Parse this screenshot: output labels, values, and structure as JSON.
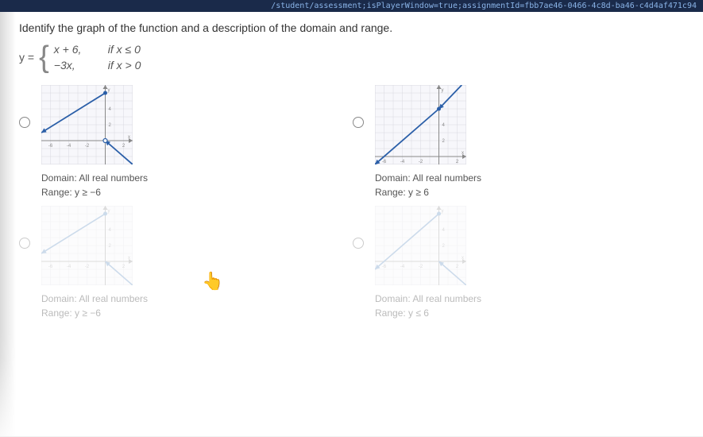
{
  "url_fragment": "/student/assessment;isPlayerWindow=true;assignmentId=fbb7ae46-0466-4c8d-ba46-c4d4af471c94",
  "question_text": "Identify the graph of the function and a description of the domain and range.",
  "equation": {
    "lhs": "y =",
    "pieces": [
      {
        "expr": "x + 6,",
        "cond": "if x ≤ 0"
      },
      {
        "expr": "−3x,",
        "cond": "if x > 0"
      }
    ]
  },
  "options": [
    {
      "id": "a",
      "domain_label": "Domain: All real numbers",
      "range_label": "Range: y ≥ −6",
      "faded": false,
      "chart": {
        "type": "piecewise-line",
        "xlim": [
          -7,
          3
        ],
        "ylim": [
          -3,
          7
        ],
        "grid_color": "#d8d8e0",
        "axis_color": "#888",
        "bg": "#f7f7fb",
        "xticks": [
          -6,
          -4,
          -2,
          2
        ],
        "yticks": [
          2,
          4
        ],
        "segments": [
          {
            "points": [
              [
                -7,
                1
              ],
              [
                0,
                6
              ]
            ],
            "color": "#2b5fa8",
            "width": 1.8,
            "end_dot": [
              0,
              6
            ]
          },
          {
            "points": [
              [
                0,
                0
              ],
              [
                3,
                -3
              ]
            ],
            "color": "#2b5fa8",
            "width": 1.8,
            "open_dot": [
              0,
              0
            ]
          }
        ],
        "arrows": true
      }
    },
    {
      "id": "b",
      "domain_label": "Domain: All real numbers",
      "range_label": "Range: y ≥ 6",
      "faded": false,
      "chart": {
        "type": "piecewise-line",
        "xlim": [
          -7,
          3
        ],
        "ylim": [
          -1,
          9
        ],
        "grid_color": "#d8d8e0",
        "axis_color": "#888",
        "bg": "#f7f7fb",
        "xticks": [
          -6,
          -4,
          -2,
          2
        ],
        "yticks": [
          2,
          4
        ],
        "segments": [
          {
            "points": [
              [
                -7,
                -1
              ],
              [
                0,
                6
              ]
            ],
            "color": "#2b5fa8",
            "width": 1.8,
            "end_dot": [
              0,
              6
            ]
          },
          {
            "points": [
              [
                0,
                6
              ],
              [
                2.5,
                9
              ]
            ],
            "color": "#2b5fa8",
            "width": 1.8
          }
        ],
        "arrows": true
      }
    },
    {
      "id": "c",
      "domain_label": "Domain: All real numbers",
      "range_label": "Range: y ≥ −6",
      "faded": true,
      "chart": {
        "type": "piecewise-line",
        "xlim": [
          -7,
          3
        ],
        "ylim": [
          -3,
          7
        ],
        "grid_color": "#e4e4e8",
        "axis_color": "#bbb",
        "bg": "#fbfbfd",
        "xticks": [
          -6,
          -4,
          -2,
          2
        ],
        "yticks": [
          2,
          4
        ],
        "segments": [
          {
            "points": [
              [
                -7,
                1
              ],
              [
                0,
                6
              ]
            ],
            "color": "#9bb8d8",
            "width": 1.6,
            "end_dot": [
              0,
              6
            ]
          },
          {
            "points": [
              [
                0,
                0
              ],
              [
                3,
                -3
              ]
            ],
            "color": "#9bb8d8",
            "width": 1.6
          }
        ],
        "arrows": true
      }
    },
    {
      "id": "d",
      "domain_label": "Domain: All real numbers",
      "range_label": "Range: y ≤ 6",
      "faded": true,
      "chart": {
        "type": "piecewise-line",
        "xlim": [
          -7,
          3
        ],
        "ylim": [
          -3,
          7
        ],
        "grid_color": "#e4e4e8",
        "axis_color": "#bbb",
        "bg": "#fbfbfd",
        "xticks": [
          -6,
          -4,
          -2,
          2
        ],
        "yticks": [
          2,
          4
        ],
        "segments": [
          {
            "points": [
              [
                -7,
                -1
              ],
              [
                0,
                6
              ]
            ],
            "color": "#9bb8d8",
            "width": 1.6,
            "end_dot": [
              0,
              6
            ]
          },
          {
            "points": [
              [
                0,
                0
              ],
              [
                3,
                -3
              ]
            ],
            "color": "#9bb8d8",
            "width": 1.6
          }
        ],
        "arrows": true
      }
    }
  ],
  "cursor_glyph": "👆"
}
